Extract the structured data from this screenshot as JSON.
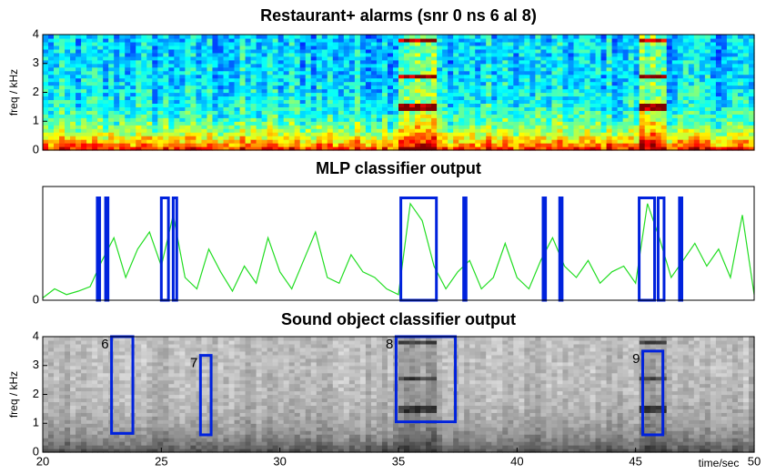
{
  "chart_data": [
    {
      "type": "spectrogram",
      "title": "Restaurant+ alarms (snr 0 ns 6 al 8)",
      "ylabel": "freq / kHz",
      "colormap": "jet",
      "xlim": [
        20,
        50
      ],
      "ylim": [
        0,
        4
      ],
      "yticks": [
        0,
        1,
        2,
        3,
        4
      ]
    },
    {
      "type": "line",
      "title": "MLP classifier output",
      "color": "#22dd22",
      "xlim": [
        20,
        50
      ],
      "ylim": [
        0,
        1
      ],
      "yticks": [
        0
      ],
      "x": [
        20,
        20.5,
        21,
        21.5,
        22,
        22.5,
        23,
        23.5,
        24,
        24.5,
        25,
        25.5,
        26,
        26.5,
        27,
        27.5,
        28,
        28.5,
        29,
        29.5,
        30,
        30.5,
        31,
        31.5,
        32,
        32.5,
        33,
        33.5,
        34,
        34.5,
        35,
        35.5,
        36,
        36.5,
        37,
        37.5,
        38,
        38.5,
        39,
        39.5,
        40,
        40.5,
        41,
        41.5,
        42,
        42.5,
        43,
        43.5,
        44,
        44.5,
        45,
        45.5,
        46,
        46.5,
        47,
        47.5,
        48,
        48.5,
        49,
        49.5,
        50
      ],
      "values": [
        0.02,
        0.1,
        0.05,
        0.08,
        0.12,
        0.35,
        0.55,
        0.2,
        0.45,
        0.6,
        0.3,
        0.75,
        0.2,
        0.1,
        0.45,
        0.25,
        0.08,
        0.3,
        0.15,
        0.55,
        0.25,
        0.1,
        0.35,
        0.6,
        0.2,
        0.15,
        0.4,
        0.25,
        0.2,
        0.1,
        0.05,
        0.85,
        0.7,
        0.3,
        0.1,
        0.25,
        0.35,
        0.1,
        0.2,
        0.5,
        0.2,
        0.1,
        0.35,
        0.55,
        0.3,
        0.2,
        0.35,
        0.15,
        0.25,
        0.3,
        0.15,
        0.85,
        0.55,
        0.2,
        0.35,
        0.5,
        0.3,
        0.45,
        0.2,
        0.75,
        0.05
      ],
      "detection_color": "#0022dd",
      "detection_level": 0.9,
      "detections": [
        [
          22.3,
          22.4
        ],
        [
          22.65,
          22.75
        ],
        [
          25.0,
          25.3
        ],
        [
          25.5,
          25.65
        ],
        [
          35.1,
          36.6
        ],
        [
          37.75,
          37.85
        ],
        [
          41.1,
          41.2
        ],
        [
          41.8,
          41.9
        ],
        [
          45.15,
          45.8
        ],
        [
          45.95,
          46.2
        ],
        [
          46.85,
          46.95
        ]
      ]
    },
    {
      "type": "spectrogram",
      "title": "Sound object classifier output",
      "ylabel": "freq / kHz",
      "xlabel": "time/sec",
      "colormap": "gray",
      "xlim": [
        20,
        50
      ],
      "ylim": [
        0,
        4
      ],
      "yticks": [
        0,
        1,
        2,
        3,
        4
      ],
      "xticks": [
        20,
        25,
        30,
        35,
        40,
        45,
        50
      ],
      "box_color": "#0022dd",
      "objects": [
        {
          "label": "6",
          "t": [
            22.9,
            23.8
          ],
          "f": [
            0.65,
            4
          ]
        },
        {
          "label": "7",
          "t": [
            26.65,
            27.1
          ],
          "f": [
            0.6,
            3.35
          ]
        },
        {
          "label": "8",
          "t": [
            34.9,
            37.4
          ],
          "f": [
            1.05,
            4
          ]
        },
        {
          "label": "9",
          "t": [
            45.3,
            46.15
          ],
          "f": [
            0.6,
            3.5
          ]
        }
      ]
    }
  ]
}
